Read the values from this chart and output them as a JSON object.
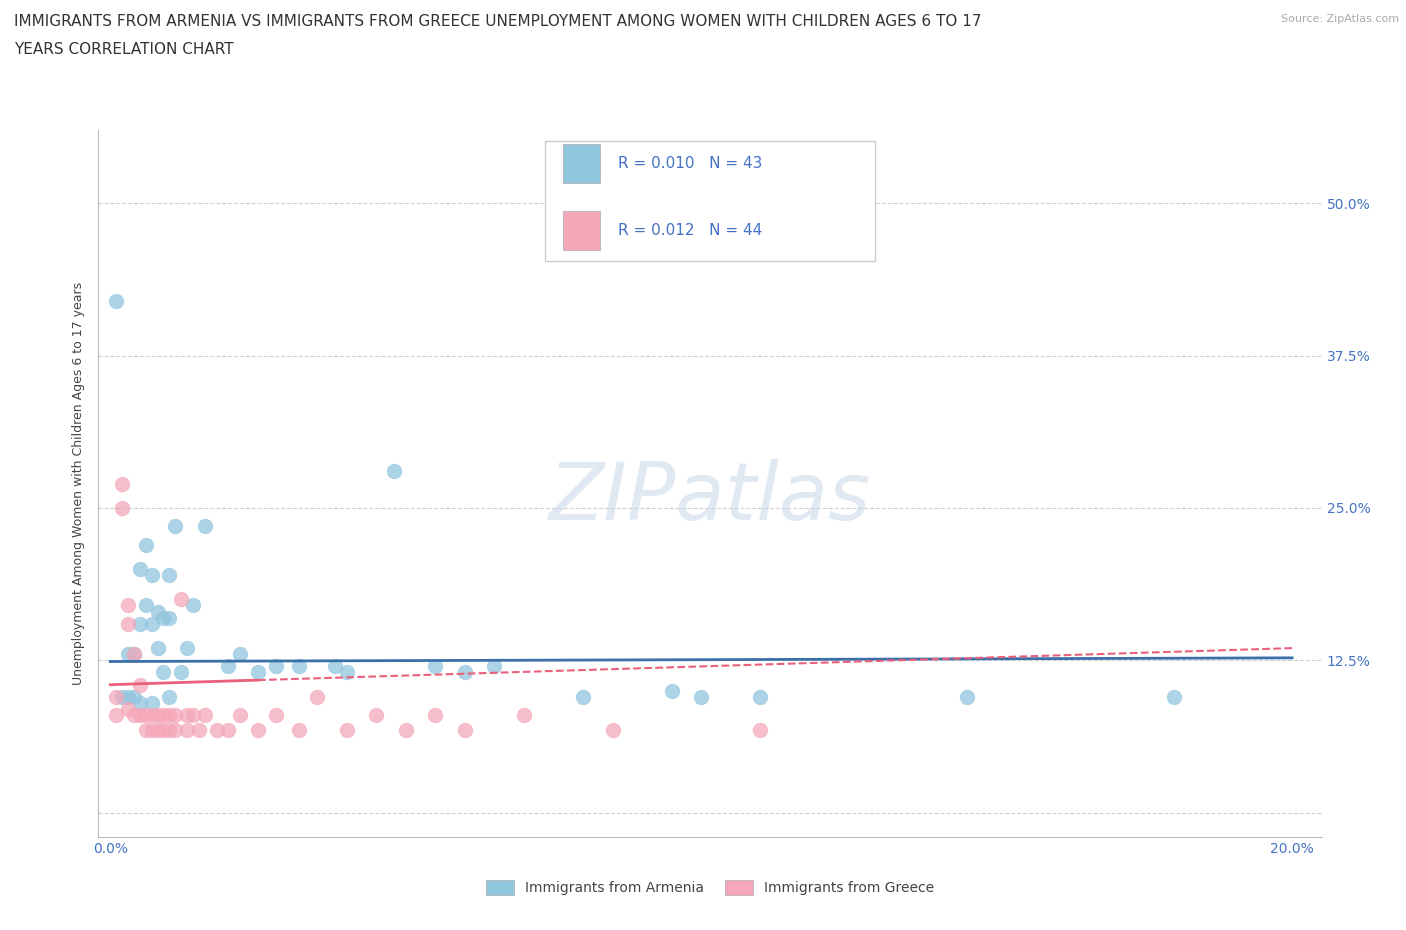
{
  "title_line1": "IMMIGRANTS FROM ARMENIA VS IMMIGRANTS FROM GREECE UNEMPLOYMENT AMONG WOMEN WITH CHILDREN AGES 6 TO 17",
  "title_line2": "YEARS CORRELATION CHART",
  "source_text": "Source: ZipAtlas.com",
  "ylabel": "Unemployment Among Women with Children Ages 6 to 17 years",
  "xlim": [
    -0.002,
    0.205
  ],
  "ylim": [
    -0.02,
    0.56
  ],
  "xtick_positions": [
    0.0,
    0.2
  ],
  "xtick_labels": [
    "0.0%",
    "20.0%"
  ],
  "ytick_positions": [
    0.0,
    0.125,
    0.25,
    0.375,
    0.5
  ],
  "ytick_labels": [
    "",
    "12.5%",
    "25.0%",
    "37.5%",
    "50.0%"
  ],
  "watermark": "ZIPatlas",
  "armenia_color": "#92c5de",
  "greece_color": "#f4a7b9",
  "armenia_line_color": "#3a6fa8",
  "greece_line_color": "#e8607a",
  "legend_R_armenia": "0.010",
  "legend_N_armenia": "43",
  "legend_R_greece": "0.012",
  "legend_N_greece": "44",
  "armenia_scatter_x": [
    0.001,
    0.002,
    0.003,
    0.003,
    0.004,
    0.004,
    0.005,
    0.005,
    0.005,
    0.006,
    0.006,
    0.007,
    0.007,
    0.007,
    0.008,
    0.008,
    0.009,
    0.009,
    0.01,
    0.01,
    0.01,
    0.011,
    0.012,
    0.013,
    0.014,
    0.016,
    0.02,
    0.022,
    0.025,
    0.028,
    0.032,
    0.038,
    0.04,
    0.048,
    0.055,
    0.06,
    0.065,
    0.08,
    0.095,
    0.1,
    0.11,
    0.145,
    0.18
  ],
  "armenia_scatter_y": [
    0.42,
    0.095,
    0.13,
    0.095,
    0.13,
    0.095,
    0.2,
    0.155,
    0.09,
    0.22,
    0.17,
    0.195,
    0.155,
    0.09,
    0.165,
    0.135,
    0.16,
    0.115,
    0.195,
    0.16,
    0.095,
    0.235,
    0.115,
    0.135,
    0.17,
    0.235,
    0.12,
    0.13,
    0.115,
    0.12,
    0.12,
    0.12,
    0.115,
    0.28,
    0.12,
    0.115,
    0.12,
    0.095,
    0.1,
    0.095,
    0.095,
    0.095,
    0.095
  ],
  "greece_scatter_x": [
    0.001,
    0.001,
    0.002,
    0.002,
    0.003,
    0.003,
    0.003,
    0.004,
    0.004,
    0.005,
    0.005,
    0.006,
    0.006,
    0.007,
    0.007,
    0.008,
    0.008,
    0.009,
    0.009,
    0.01,
    0.01,
    0.011,
    0.011,
    0.012,
    0.013,
    0.013,
    0.014,
    0.015,
    0.016,
    0.018,
    0.02,
    0.022,
    0.025,
    0.028,
    0.032,
    0.035,
    0.04,
    0.045,
    0.05,
    0.055,
    0.06,
    0.07,
    0.085,
    0.11
  ],
  "greece_scatter_y": [
    0.095,
    0.08,
    0.27,
    0.25,
    0.17,
    0.155,
    0.085,
    0.13,
    0.08,
    0.105,
    0.08,
    0.08,
    0.068,
    0.08,
    0.068,
    0.08,
    0.068,
    0.08,
    0.068,
    0.08,
    0.068,
    0.08,
    0.068,
    0.175,
    0.08,
    0.068,
    0.08,
    0.068,
    0.08,
    0.068,
    0.068,
    0.08,
    0.068,
    0.08,
    0.068,
    0.095,
    0.068,
    0.08,
    0.068,
    0.08,
    0.068,
    0.08,
    0.068,
    0.068
  ],
  "armenia_trend": [
    0.124,
    0.127
  ],
  "greece_trend": [
    0.105,
    0.135
  ],
  "grid_color": "#d0d0d0",
  "background_color": "#ffffff",
  "title_fontsize": 11,
  "axis_label_fontsize": 9,
  "tick_fontsize": 10,
  "tick_color": "#4472c4"
}
